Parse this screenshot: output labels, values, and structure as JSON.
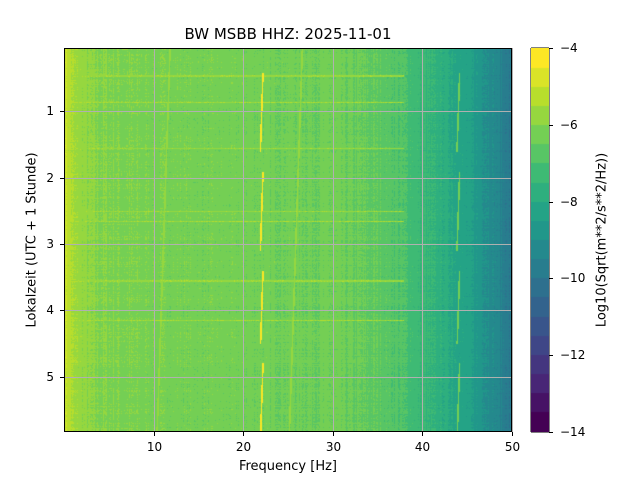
{
  "chart_data": {
    "type": "heatmap",
    "title": "BW MSBB  HHZ: 2025-11-01",
    "xlabel": "Frequency [Hz]",
    "ylabel": "Lokalzeit (UTC + 1 Stunde)",
    "colorbar_label": "Log10(Sqrt(m**2/s**2/Hz))",
    "xlim": [
      0.1,
      50
    ],
    "ylim": [
      5.83,
      0.05
    ],
    "clim": [
      -14,
      -4
    ],
    "colormap": "viridis",
    "colormap_levels": 20,
    "grid": true,
    "xticks": [
      10,
      20,
      30,
      40,
      50
    ],
    "xtick_labels": [
      "10",
      "20",
      "30",
      "40",
      "50"
    ],
    "yticks": [
      1,
      2,
      3,
      4,
      5
    ],
    "ytick_labels": [
      "1",
      "2",
      "3",
      "4",
      "5"
    ],
    "cticks": [
      -4,
      -6,
      -8,
      -10,
      -12,
      -14
    ],
    "ctick_labels": [
      "−4",
      "−6",
      "−8",
      "−10",
      "−12",
      "−14"
    ],
    "background_profile": {
      "freq_hz": [
        0.1,
        1,
        3,
        10,
        20,
        30,
        35,
        38,
        40,
        43,
        46,
        48,
        50
      ],
      "level": [
        -5.0,
        -5.6,
        -6.0,
        -6.2,
        -6.3,
        -6.4,
        -6.6,
        -7.0,
        -7.4,
        -7.9,
        -8.6,
        -9.2,
        -10.0
      ]
    },
    "spectral_lines": [
      {
        "freq_hz": 22.2,
        "level": -4.3,
        "segments": [
          [
            0.4,
            1.6
          ],
          [
            1.9,
            3.1
          ],
          [
            3.4,
            4.5
          ],
          [
            4.8,
            5.83
          ]
        ]
      },
      {
        "freq_hz": 44.2,
        "level": -6.3,
        "segments": [
          [
            0.4,
            1.6
          ],
          [
            1.9,
            3.1
          ],
          [
            3.4,
            4.5
          ],
          [
            4.8,
            5.83
          ]
        ]
      },
      {
        "freq_hz": 11.8,
        "level": -5.6,
        "segments": [
          [
            0.05,
            5.83
          ]
        ]
      },
      {
        "freq_hz": 26.6,
        "level": -5.9,
        "segments": [
          [
            0.05,
            5.83
          ]
        ]
      }
    ],
    "time_bands": [
      {
        "time": 0.45,
        "level": -5.6
      },
      {
        "time": 0.85,
        "level": -5.5
      },
      {
        "time": 1.55,
        "level": -5.6
      },
      {
        "time": 2.5,
        "level": -5.6
      },
      {
        "time": 2.65,
        "level": -5.5
      },
      {
        "time": 3.55,
        "level": -5.6
      },
      {
        "time": 4.15,
        "level": -5.5
      }
    ]
  }
}
